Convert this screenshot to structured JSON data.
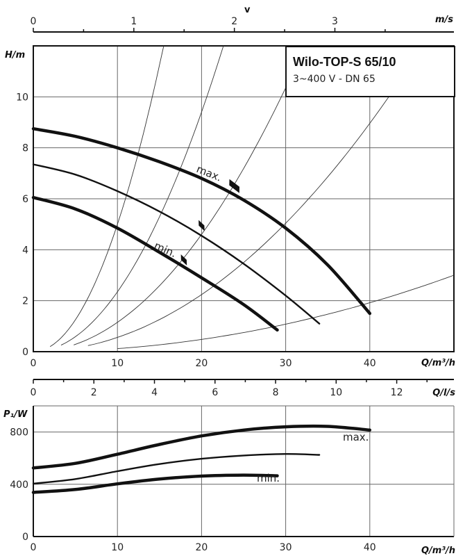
{
  "title": "Wilo-TOP-S 65/10",
  "subtitle": "3~400 V - DN 65",
  "chart_data": [
    {
      "type": "line",
      "name": "head-curve",
      "ylabel": "H/m",
      "xlabel": "Q/m³/h",
      "xlim": [
        0,
        50
      ],
      "ylim": [
        0,
        12
      ],
      "x_ticks": [
        0,
        10,
        20,
        30,
        40
      ],
      "y_ticks": [
        0,
        2,
        4,
        6,
        8,
        10
      ],
      "grid": true,
      "top_axes": [
        {
          "label": "v",
          "unit_label": "m/s",
          "ticks": [
            0,
            1,
            2,
            3
          ],
          "m3h_per_unit": 11.95
        },
        {
          "label": "Q/l/s",
          "ticks": [
            0,
            2,
            4,
            6,
            8,
            10,
            12
          ],
          "m3h_per_unit": 3.6
        }
      ],
      "series": [
        {
          "name": "max.",
          "style": "thick",
          "x": [
            0,
            5,
            10,
            15,
            20,
            25,
            30,
            35,
            40
          ],
          "y": [
            8.75,
            8.45,
            8.0,
            7.45,
            6.8,
            5.95,
            4.85,
            3.4,
            1.5
          ]
        },
        {
          "name": "",
          "style": "mid",
          "x": [
            0,
            5,
            10,
            15,
            20,
            25,
            30,
            34
          ],
          "y": [
            7.35,
            6.95,
            6.3,
            5.5,
            4.55,
            3.45,
            2.2,
            1.1
          ]
        },
        {
          "name": "min.",
          "style": "thick",
          "x": [
            0,
            5,
            10,
            15,
            20,
            25,
            29
          ],
          "y": [
            6.05,
            5.6,
            4.85,
            3.9,
            2.9,
            1.85,
            0.85
          ]
        }
      ],
      "system_curves": [
        {
          "k": 0.05,
          "x_start": 2.0,
          "x_end": 15.5
        },
        {
          "k": 0.0235,
          "x_start": 3.3,
          "x_end": 22.6
        },
        {
          "k": 0.0115,
          "x_start": 4.8,
          "x_end": 32.3
        },
        {
          "k": 0.0056,
          "x_start": 6.5,
          "x_end": 46.0
        },
        {
          "k": 0.0012,
          "x_start": 10.0,
          "x_end": 50.0
        }
      ],
      "markers": [
        {
          "series": "max.",
          "x": 23.9,
          "y": 6.5
        },
        {
          "series": "",
          "x": 20.0,
          "y": 4.95
        },
        {
          "series": "min.",
          "x": 17.9,
          "y": 3.6
        }
      ]
    },
    {
      "type": "line",
      "name": "power-curve",
      "ylabel": "P₁/W",
      "xlabel": "Q/m³/h",
      "xlim": [
        0,
        50
      ],
      "ylim": [
        0,
        1000
      ],
      "x_ticks": [
        0,
        10,
        20,
        30,
        40
      ],
      "y_ticks": [
        0,
        400,
        800
      ],
      "grid": true,
      "series": [
        {
          "name": "max.",
          "style": "thick",
          "x": [
            0,
            5,
            10,
            15,
            20,
            25,
            30,
            35,
            40
          ],
          "y": [
            525,
            560,
            630,
            705,
            770,
            815,
            840,
            843,
            815
          ]
        },
        {
          "name": "",
          "style": "mid",
          "x": [
            0,
            5,
            10,
            15,
            20,
            25,
            30,
            34
          ],
          "y": [
            405,
            440,
            500,
            555,
            595,
            620,
            632,
            625
          ]
        },
        {
          "name": "min.",
          "style": "thick",
          "x": [
            0,
            5,
            10,
            15,
            20,
            25,
            29
          ],
          "y": [
            338,
            360,
            403,
            440,
            463,
            470,
            465
          ]
        }
      ]
    }
  ]
}
